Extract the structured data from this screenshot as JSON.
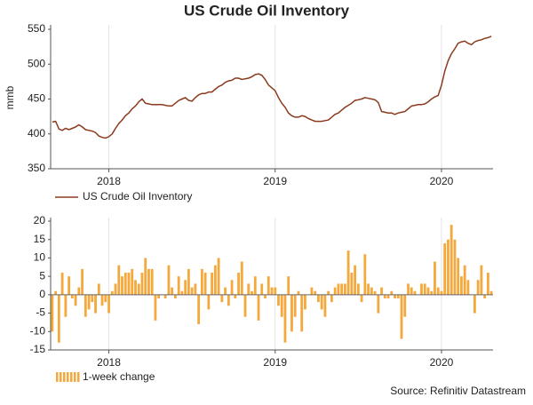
{
  "chart_data": [
    {
      "type": "line",
      "title": "US Crude Oil Inventory",
      "ylabel": "mmb",
      "x": [
        2017.66,
        2017.68,
        2017.7,
        2017.72,
        2017.74,
        2017.76,
        2017.78,
        2017.8,
        2017.82,
        2017.84,
        2017.86,
        2017.88,
        2017.9,
        2017.92,
        2017.94,
        2017.96,
        2017.98,
        2018.0,
        2018.02,
        2018.04,
        2018.06,
        2018.08,
        2018.1,
        2018.12,
        2018.14,
        2018.16,
        2018.18,
        2018.2,
        2018.22,
        2018.24,
        2018.26,
        2018.28,
        2018.3,
        2018.32,
        2018.34,
        2018.36,
        2018.38,
        2018.4,
        2018.42,
        2018.44,
        2018.46,
        2018.48,
        2018.5,
        2018.52,
        2018.54,
        2018.56,
        2018.58,
        2018.6,
        2018.62,
        2018.64,
        2018.66,
        2018.68,
        2018.7,
        2018.72,
        2018.74,
        2018.76,
        2018.78,
        2018.8,
        2018.82,
        2018.84,
        2018.86,
        2018.88,
        2018.9,
        2018.92,
        2018.94,
        2018.96,
        2018.98,
        2019.0,
        2019.02,
        2019.04,
        2019.06,
        2019.08,
        2019.1,
        2019.12,
        2019.14,
        2019.16,
        2019.18,
        2019.2,
        2019.22,
        2019.24,
        2019.26,
        2019.28,
        2019.3,
        2019.32,
        2019.34,
        2019.36,
        2019.38,
        2019.4,
        2019.42,
        2019.44,
        2019.46,
        2019.48,
        2019.5,
        2019.52,
        2019.54,
        2019.56,
        2019.58,
        2019.6,
        2019.62,
        2019.64,
        2019.66,
        2019.68,
        2019.7,
        2019.72,
        2019.74,
        2019.76,
        2019.78,
        2019.8,
        2019.82,
        2019.84,
        2019.86,
        2019.88,
        2019.9,
        2019.92,
        2019.94,
        2019.96,
        2019.98,
        2020.0,
        2020.02,
        2020.04,
        2020.06,
        2020.08,
        2020.1,
        2020.12,
        2020.14,
        2020.16,
        2020.18,
        2020.2,
        2020.22,
        2020.24,
        2020.26,
        2020.28,
        2020.3
      ],
      "series": [
        {
          "name": "US Crude Oil Inventory",
          "color": "#8b3a1e",
          "values": [
            417,
            418,
            407,
            405,
            408,
            406,
            408,
            410,
            413,
            410,
            406,
            405,
            404,
            402,
            397,
            395,
            394,
            396,
            400,
            408,
            415,
            420,
            426,
            430,
            436,
            440,
            446,
            450,
            444,
            443,
            442,
            442,
            442,
            442,
            441,
            440,
            440,
            444,
            448,
            450,
            452,
            448,
            447,
            452,
            456,
            458,
            458,
            460,
            460,
            464,
            468,
            470,
            474,
            476,
            477,
            480,
            480,
            478,
            479,
            480,
            482,
            485,
            486,
            484,
            478,
            470,
            466,
            462,
            452,
            444,
            438,
            430,
            426,
            424,
            424,
            426,
            425,
            422,
            420,
            418,
            418,
            418,
            419,
            420,
            424,
            428,
            430,
            434,
            438,
            441,
            444,
            448,
            449,
            450,
            452,
            451,
            450,
            449,
            445,
            432,
            431,
            430,
            430,
            428,
            430,
            431,
            432,
            436,
            440,
            441,
            442,
            442,
            443,
            446,
            450,
            453,
            455,
            470,
            490,
            505,
            515,
            522,
            530,
            532,
            533,
            530,
            528,
            532,
            534,
            535,
            537,
            538,
            540
          ]
        }
      ],
      "xlim": [
        2017.65,
        2020.31
      ],
      "xticks": [
        2018,
        2019,
        2020
      ],
      "ylim": [
        350,
        550
      ],
      "yticks": [
        350,
        400,
        450,
        500,
        550
      ],
      "grid": true
    },
    {
      "type": "bar",
      "x": [
        2017.66,
        2017.68,
        2017.7,
        2017.72,
        2017.74,
        2017.76,
        2017.78,
        2017.8,
        2017.82,
        2017.84,
        2017.86,
        2017.88,
        2017.9,
        2017.92,
        2017.94,
        2017.96,
        2017.98,
        2018.0,
        2018.02,
        2018.04,
        2018.06,
        2018.08,
        2018.1,
        2018.12,
        2018.14,
        2018.16,
        2018.18,
        2018.2,
        2018.22,
        2018.24,
        2018.26,
        2018.28,
        2018.3,
        2018.32,
        2018.34,
        2018.36,
        2018.38,
        2018.4,
        2018.42,
        2018.44,
        2018.46,
        2018.48,
        2018.5,
        2018.52,
        2018.54,
        2018.56,
        2018.58,
        2018.6,
        2018.62,
        2018.64,
        2018.66,
        2018.68,
        2018.7,
        2018.72,
        2018.74,
        2018.76,
        2018.78,
        2018.8,
        2018.82,
        2018.84,
        2018.86,
        2018.88,
        2018.9,
        2018.92,
        2018.94,
        2018.96,
        2018.98,
        2019.0,
        2019.02,
        2019.04,
        2019.06,
        2019.08,
        2019.1,
        2019.12,
        2019.14,
        2019.16,
        2019.18,
        2019.2,
        2019.22,
        2019.24,
        2019.26,
        2019.28,
        2019.3,
        2019.32,
        2019.34,
        2019.36,
        2019.38,
        2019.4,
        2019.42,
        2019.44,
        2019.46,
        2019.48,
        2019.5,
        2019.52,
        2019.54,
        2019.56,
        2019.58,
        2019.6,
        2019.62,
        2019.64,
        2019.66,
        2019.68,
        2019.7,
        2019.72,
        2019.74,
        2019.76,
        2019.78,
        2019.8,
        2019.82,
        2019.84,
        2019.86,
        2019.88,
        2019.9,
        2019.92,
        2019.94,
        2019.96,
        2019.98,
        2020.0,
        2020.02,
        2020.04,
        2020.06,
        2020.08,
        2020.1,
        2020.12,
        2020.14,
        2020.16,
        2020.18,
        2020.2,
        2020.22,
        2020.24,
        2020.26,
        2020.28,
        2020.3
      ],
      "series": [
        {
          "name": "1-week change",
          "color": "#f5a83c",
          "values": [
            -10,
            1,
            -13,
            6,
            -6,
            5,
            -1,
            -3,
            2,
            7,
            -6,
            -4,
            -2,
            -5,
            3,
            -3,
            -2,
            -5,
            1,
            3,
            8,
            5,
            6,
            6,
            7,
            4,
            3,
            6,
            10,
            7,
            7,
            -7,
            -1,
            0,
            -1,
            8,
            2,
            -1,
            5,
            1,
            4,
            7,
            2,
            3,
            -8,
            7,
            6,
            -4,
            6,
            8,
            10,
            -2,
            2,
            -3,
            4,
            -1,
            6,
            9,
            -6,
            3,
            1,
            5,
            -7,
            3,
            -1,
            5,
            2,
            2,
            -3,
            -6,
            -13,
            5,
            -10,
            -6,
            1,
            -10,
            -4,
            0,
            2,
            1,
            -2,
            -4,
            -6,
            1,
            -2,
            2,
            3,
            3,
            3,
            12,
            6,
            8,
            3,
            -2,
            11,
            3,
            2,
            1,
            -5,
            2,
            -1,
            -1,
            1,
            -1,
            -1,
            -12,
            -6,
            3,
            2,
            1,
            0,
            3,
            3,
            2,
            1,
            9,
            2,
            1,
            14,
            15,
            19,
            15,
            10,
            5,
            8,
            4,
            0,
            -5,
            4,
            8,
            -1,
            6,
            1
          ]
        }
      ],
      "xlim": [
        2017.65,
        2020.31
      ],
      "xticks": [
        2018,
        2019,
        2020
      ],
      "ylim": [
        -15,
        20
      ],
      "yticks": [
        -15,
        -10,
        -5,
        0,
        5,
        10,
        15,
        20
      ],
      "grid": true
    }
  ],
  "source": "Source: Refinitiv Datastream"
}
